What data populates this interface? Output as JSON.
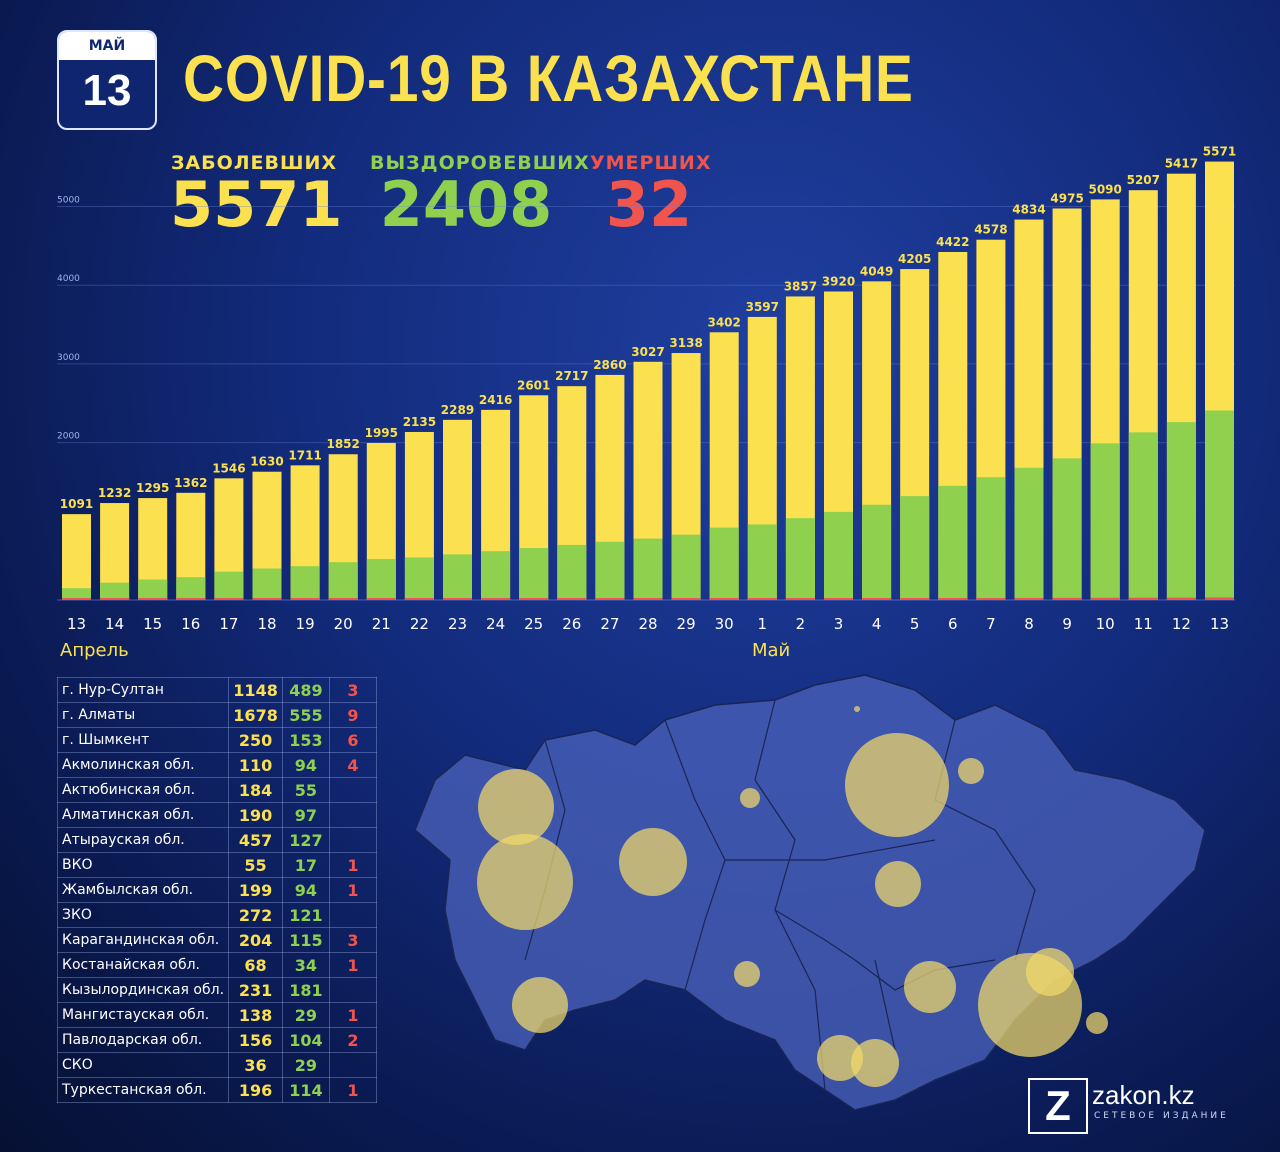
{
  "date": {
    "month": "МАЙ",
    "day": "13"
  },
  "title": "COVID-19 В КАЗАХСТАНЕ",
  "stats": {
    "infected_label": "ЗАБОЛЕВШИХ",
    "infected_value": "5571",
    "recovered_label": "ВЫЗДОРОВЕВШИХ",
    "recovered_value": "2408",
    "deaths_label": "УМЕРШИХ",
    "deaths_value": "32"
  },
  "colors": {
    "infected": "#fbe04f",
    "recovered": "#8fd14f",
    "deaths": "#f0544c",
    "background": "#122a7a"
  },
  "chart_data": {
    "type": "bar",
    "categories": [
      "13",
      "14",
      "15",
      "16",
      "17",
      "18",
      "19",
      "20",
      "21",
      "22",
      "23",
      "24",
      "25",
      "26",
      "27",
      "28",
      "29",
      "30",
      "1",
      "2",
      "3",
      "4",
      "5",
      "6",
      "7",
      "8",
      "9",
      "10",
      "11",
      "12",
      "13"
    ],
    "month_labels": [
      "Апрель",
      "Май"
    ],
    "yticks": [
      "2000",
      "3000",
      "4000",
      "5000"
    ],
    "ylim": [
      0,
      5600
    ],
    "grid": true,
    "series": [
      {
        "name": "ЗАБОЛЕВШИХ",
        "color": "#fbe04f",
        "values": [
          1091,
          1232,
          1295,
          1362,
          1546,
          1630,
          1711,
          1852,
          1995,
          2135,
          2289,
          2416,
          2601,
          2717,
          2860,
          3027,
          3138,
          3402,
          3597,
          3857,
          3920,
          4049,
          4205,
          4422,
          4578,
          4834,
          4975,
          5090,
          5207,
          5417,
          5571
        ]
      },
      {
        "name": "ВЫЗДОРОВЕВШИХ",
        "color": "#8fd14f",
        "values": [
          150,
          220,
          260,
          290,
          360,
          400,
          430,
          480,
          520,
          540,
          580,
          620,
          660,
          700,
          740,
          780,
          830,
          920,
          960,
          1040,
          1120,
          1210,
          1320,
          1450,
          1560,
          1680,
          1800,
          1990,
          2130,
          2260,
          2408
        ]
      },
      {
        "name": "УМЕРШИХ",
        "color": "#f0544c",
        "values": [
          10,
          10,
          12,
          12,
          12,
          13,
          13,
          14,
          14,
          15,
          15,
          16,
          16,
          17,
          17,
          18,
          19,
          19,
          20,
          20,
          21,
          22,
          23,
          24,
          25,
          26,
          27,
          28,
          29,
          30,
          32
        ]
      }
    ]
  },
  "regions": [
    {
      "name": "г. Нур-Султан",
      "infected": "1148",
      "recovered": "489",
      "deaths": "3"
    },
    {
      "name": "г. Алматы",
      "infected": "1678",
      "recovered": "555",
      "deaths": "9"
    },
    {
      "name": "г. Шымкент",
      "infected": "250",
      "recovered": "153",
      "deaths": "6"
    },
    {
      "name": "Акмолинская обл.",
      "infected": "110",
      "recovered": "94",
      "deaths": "4"
    },
    {
      "name": "Актюбинская обл.",
      "infected": "184",
      "recovered": "55",
      "deaths": ""
    },
    {
      "name": "Алматинская обл.",
      "infected": "190",
      "recovered": "97",
      "deaths": ""
    },
    {
      "name": "Атырауская обл.",
      "infected": "457",
      "recovered": "127",
      "deaths": ""
    },
    {
      "name": "ВКО",
      "infected": "55",
      "recovered": "17",
      "deaths": "1"
    },
    {
      "name": "Жамбылская обл.",
      "infected": "199",
      "recovered": "94",
      "deaths": "1"
    },
    {
      "name": "ЗКО",
      "infected": "272",
      "recovered": "121",
      "deaths": ""
    },
    {
      "name": "Карагандинская обл.",
      "infected": "204",
      "recovered": "115",
      "deaths": "3"
    },
    {
      "name": "Костанайская обл.",
      "infected": "68",
      "recovered": "34",
      "deaths": "1"
    },
    {
      "name": "Кызылординская обл.",
      "infected": "231",
      "recovered": "181",
      "deaths": ""
    },
    {
      "name": "Мангистауская обл.",
      "infected": "138",
      "recovered": "29",
      "deaths": "1"
    },
    {
      "name": "Павлодарская обл.",
      "infected": "156",
      "recovered": "104",
      "deaths": "2"
    },
    {
      "name": "СКО",
      "infected": "36",
      "recovered": "29",
      "deaths": ""
    },
    {
      "name": "Туркестанская обл.",
      "infected": "196",
      "recovered": "114",
      "deaths": "1"
    }
  ],
  "brand": {
    "logo_letter": "Z",
    "name": "zakon.kz",
    "tagline": "СЕТЕВОЕ ИЗДАНИЕ"
  }
}
